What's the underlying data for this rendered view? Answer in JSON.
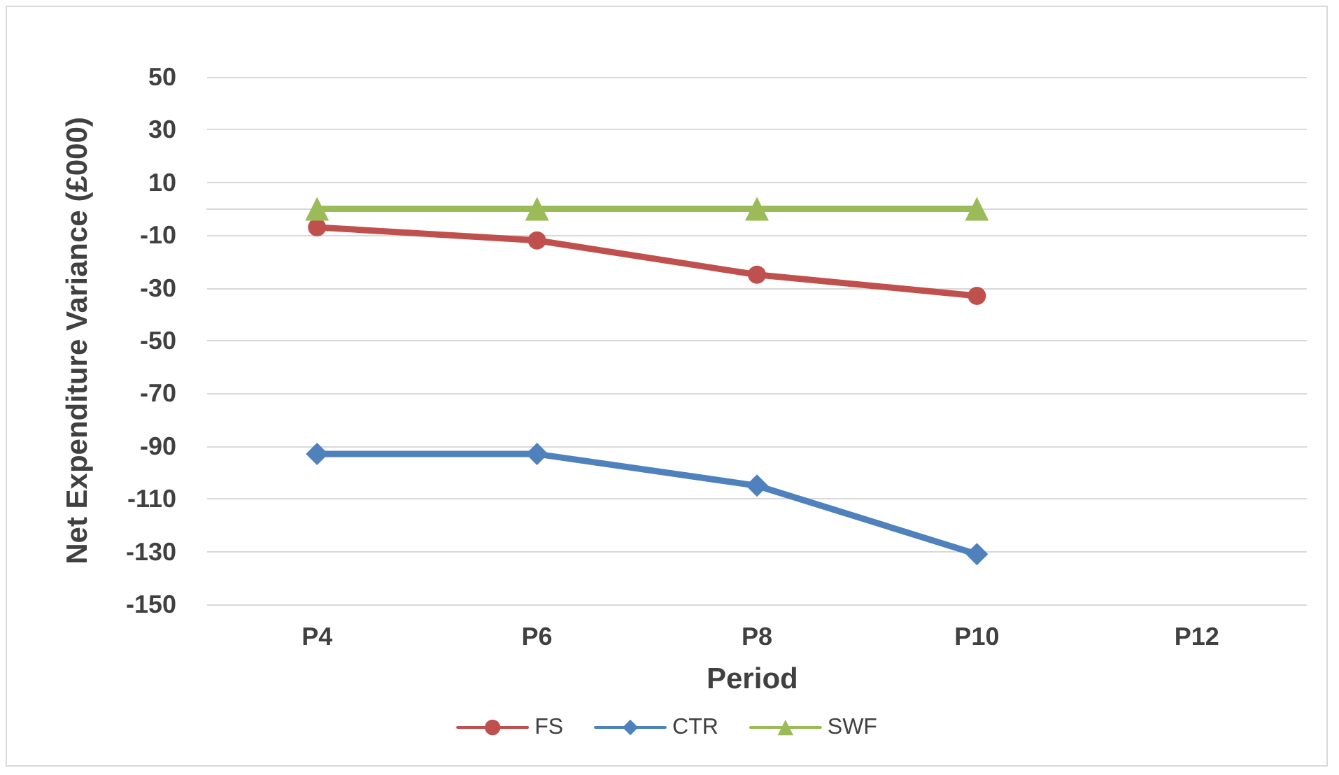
{
  "chart_data": {
    "type": "line",
    "xlabel": "Period",
    "ylabel": "Net Expenditure Variance (£000)",
    "categories": [
      "P4",
      "P6",
      "P8",
      "P10",
      "P12"
    ],
    "series": [
      {
        "name": "FS",
        "color": "#c0504d",
        "marker": "circle",
        "values": [
          -7,
          -12,
          -25,
          -33,
          null
        ]
      },
      {
        "name": "CTR",
        "color": "#4f81bd",
        "marker": "diamond",
        "values": [
          -93,
          -93,
          -105,
          -131,
          null
        ]
      },
      {
        "name": "SWF",
        "color": "#9bbb59",
        "marker": "triangle",
        "values": [
          0,
          0,
          0,
          0,
          null
        ]
      }
    ],
    "ylim": [
      -150,
      50
    ],
    "yticks": [
      -150,
      -130,
      -110,
      -90,
      -70,
      -50,
      -30,
      -10,
      10,
      30,
      50
    ],
    "grid": "y",
    "legend": "bottom",
    "line_style": "solid"
  }
}
